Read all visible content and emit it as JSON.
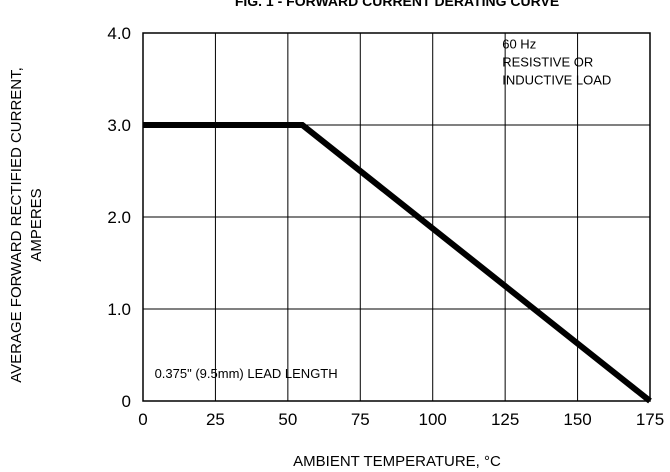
{
  "chart_data": {
    "type": "line",
    "title": "FIG. 1 - FORWARD CURRENT DERATING CURVE",
    "xlabel": "AMBIENT TEMPERATURE, °C",
    "ylabel_lines": [
      "AVERAGE FORWARD RECTIFIED CURRENT,",
      "AMPERES"
    ],
    "xlim": [
      0,
      175
    ],
    "ylim": [
      0,
      4.0
    ],
    "x_ticks": [
      0,
      25,
      50,
      75,
      100,
      125,
      150,
      175
    ],
    "y_ticks": [
      {
        "value": 0,
        "label": "0"
      },
      {
        "value": 1.0,
        "label": "1.0"
      },
      {
        "value": 2.0,
        "label": "2.0"
      },
      {
        "value": 3.0,
        "label": "3.0"
      },
      {
        "value": 4.0,
        "label": "4.0"
      }
    ],
    "grid": true,
    "series": [
      {
        "x": [
          0,
          55,
          175
        ],
        "y": [
          3.0,
          3.0,
          0
        ]
      }
    ],
    "annotations": [
      {
        "lines": [
          "60 Hz",
          "RESISTIVE OR",
          "INDUCTIVE LOAD"
        ],
        "x": 124,
        "y": 3.83
      },
      {
        "lines": [
          "0.375\" (9.5mm) LEAD LENGTH"
        ],
        "x": 4,
        "y": 0.25
      }
    ]
  }
}
